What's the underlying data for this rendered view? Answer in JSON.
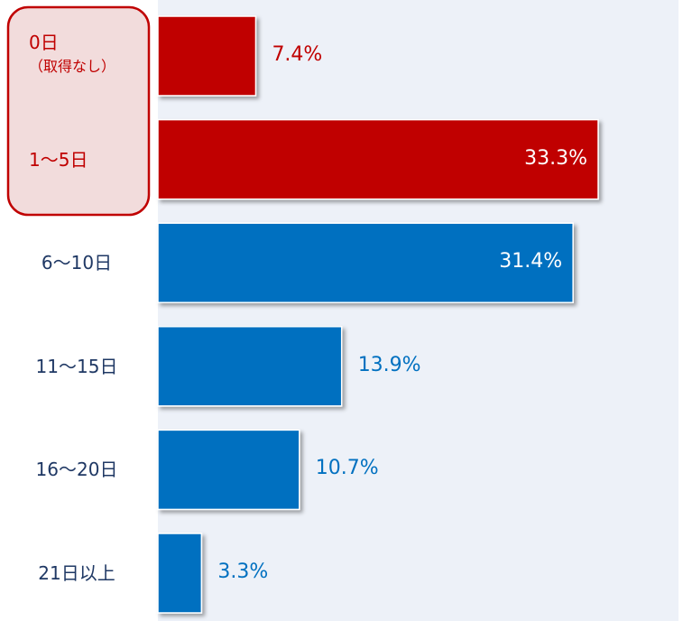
{
  "chart_data": {
    "type": "bar",
    "orientation": "horizontal",
    "categories": [
      "0日\n（取得なし）",
      "1～5日",
      "6～10日",
      "11～15日",
      "16～20日",
      "21日以上"
    ],
    "values": [
      7.4,
      33.3,
      31.4,
      13.9,
      10.7,
      3.3
    ],
    "value_labels": [
      "7.4%",
      "33.3%",
      "31.4%",
      "13.9%",
      "10.7%",
      "3.3%"
    ],
    "colors": [
      "#c00000",
      "#c00000",
      "#0070c0",
      "#0070c0",
      "#0070c0",
      "#0070c0"
    ]
  }
}
